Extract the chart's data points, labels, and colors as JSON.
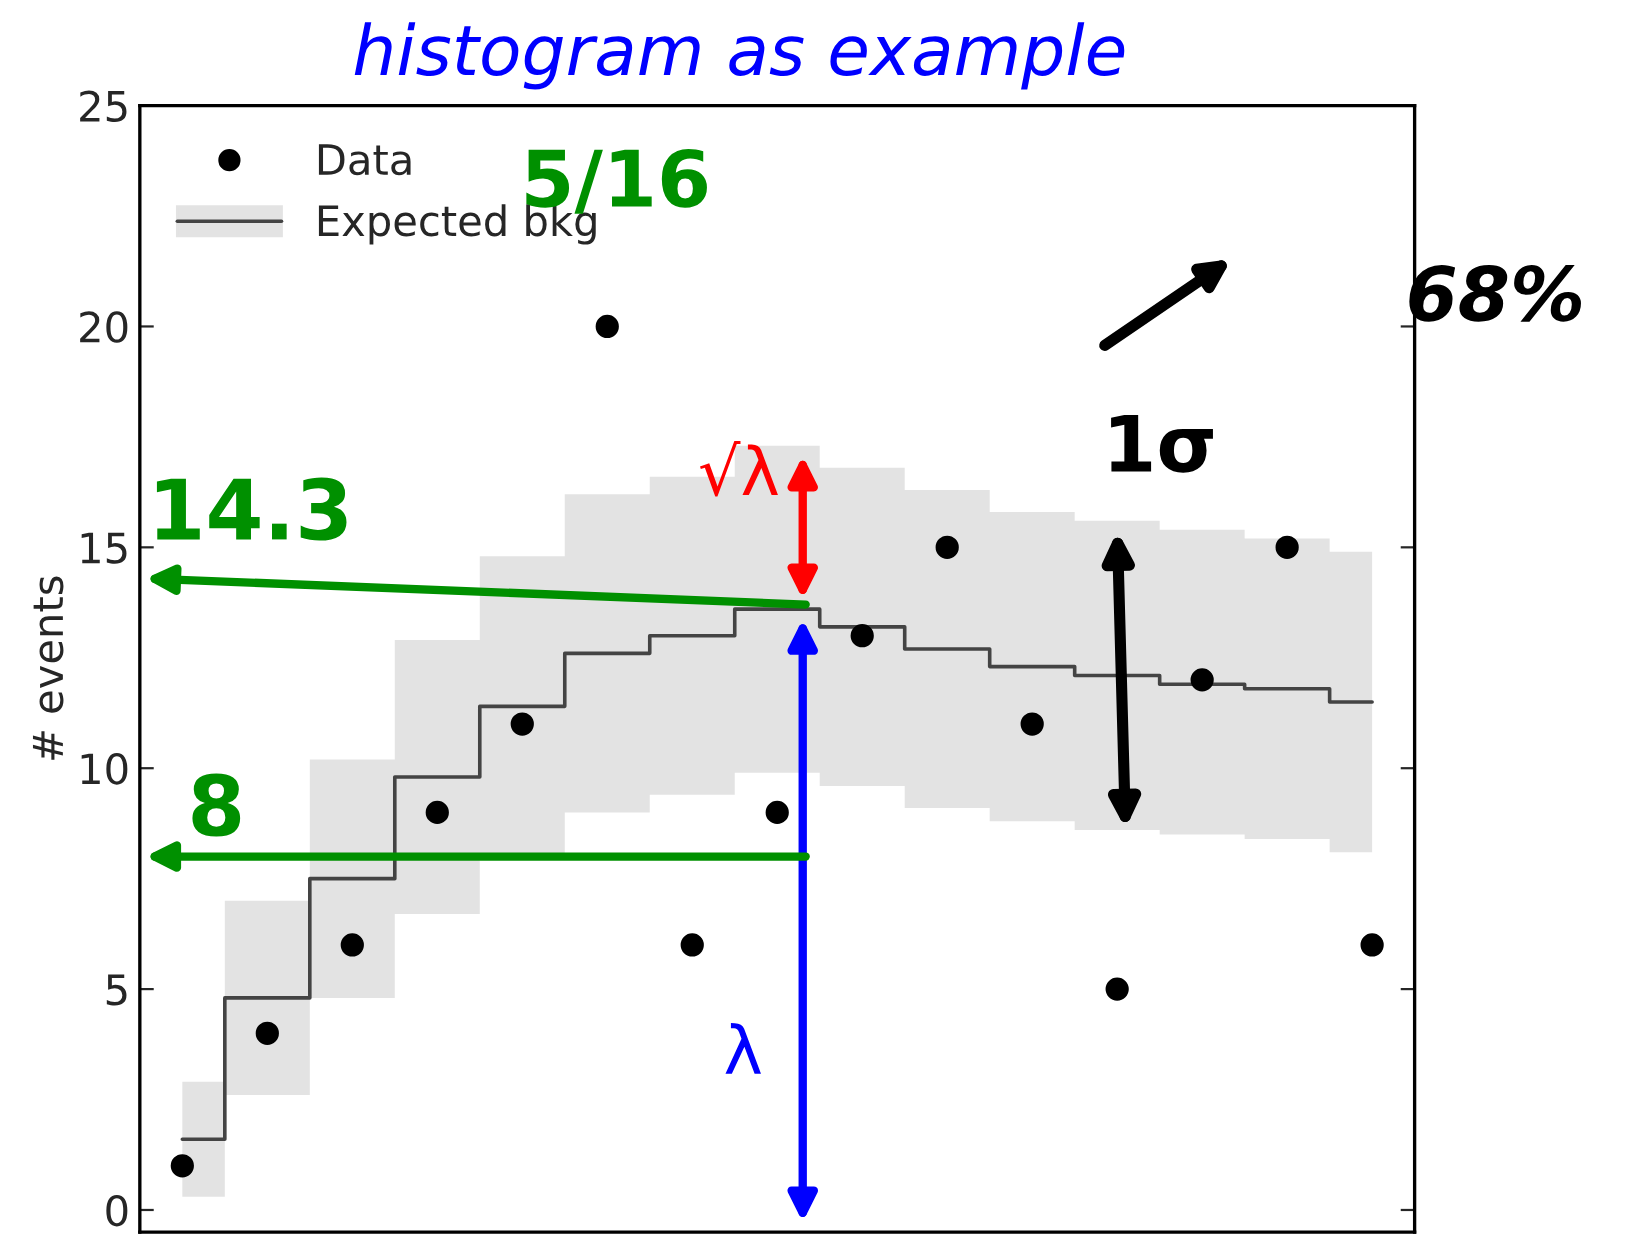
{
  "chart_data": {
    "type": "scatter",
    "title": "histogram as example",
    "ylabel": "# events",
    "categories": [
      null,
      null,
      null,
      null,
      null,
      null,
      null,
      null,
      null,
      null,
      null,
      null,
      null,
      null,
      null
    ],
    "series": [
      {
        "name": "Data",
        "color": "#000000",
        "marker": "circle",
        "values": [
          1,
          4,
          6,
          9,
          11,
          20,
          6,
          9,
          13,
          15,
          11,
          5,
          12,
          15,
          6
        ]
      },
      {
        "name": "Expected bkg",
        "type": "step",
        "color": "#444444",
        "values": [
          1.6,
          4.8,
          7.5,
          9.8,
          11.4,
          12.6,
          13.0,
          13.6,
          13.2,
          12.7,
          12.3,
          12.1,
          11.9,
          11.8,
          11.5
        ],
        "lower": [
          0.3,
          2.6,
          4.8,
          6.7,
          8.0,
          9.0,
          9.4,
          9.9,
          9.6,
          9.1,
          8.8,
          8.6,
          8.5,
          8.4,
          8.1
        ],
        "upper": [
          2.9,
          7.0,
          10.2,
          12.9,
          14.8,
          16.2,
          16.6,
          17.3,
          16.8,
          16.3,
          15.8,
          15.6,
          15.4,
          15.2,
          14.9
        ]
      }
    ],
    "ylim": [
      -0.5,
      25
    ],
    "yticks": [
      0,
      5,
      10,
      15,
      20,
      25
    ],
    "tick_labels": "y",
    "grid": false,
    "legend": "top left",
    "annotations": [
      "√λ",
      "λ",
      "14.3",
      "8",
      "5/16",
      "1σ",
      "68%"
    ]
  }
}
